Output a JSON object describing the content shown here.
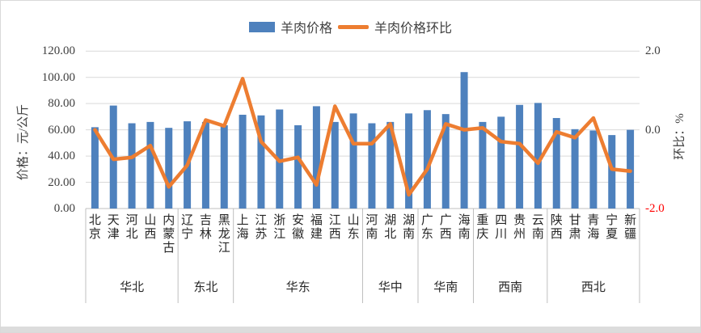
{
  "colors": {
    "bar": "#4E81BD",
    "line": "#ED7D31",
    "gridline": "#D9D9D9",
    "axis_line": "#BFBFBF",
    "tick_text": "#404040",
    "negative_tick": "#FF0000"
  },
  "chart_data": {
    "type": "bar",
    "title": "",
    "legend_position": "top",
    "grid": true,
    "categories": [
      "北京",
      "天津",
      "河北",
      "山西",
      "内蒙古",
      "辽宁",
      "吉林",
      "黑龙江",
      "上海",
      "江苏",
      "浙江",
      "安徽",
      "福建",
      "江西",
      "山东",
      "河南",
      "湖北",
      "湖南",
      "广东",
      "广西",
      "海南",
      "重庆",
      "四川",
      "贵州",
      "云南",
      "陕西",
      "甘肃",
      "青海",
      "宁夏",
      "新疆"
    ],
    "region_groups": [
      {
        "label": "华北",
        "span": 5
      },
      {
        "label": "东北",
        "span": 3
      },
      {
        "label": "华东",
        "span": 7
      },
      {
        "label": "华中",
        "span": 3
      },
      {
        "label": "华南",
        "span": 3
      },
      {
        "label": "西南",
        "span": 4
      },
      {
        "label": "西北",
        "span": 5
      }
    ],
    "series": [
      {
        "name": "羊肉价格",
        "type": "bar",
        "axis": "left",
        "color": "#4E81BD",
        "values": [
          62,
          78.5,
          65,
          66,
          61.5,
          66.5,
          66,
          63.5,
          71.5,
          71,
          75.5,
          63.5,
          78,
          66,
          72.5,
          65,
          66,
          72.5,
          75,
          72,
          104,
          66,
          70,
          79,
          80.5,
          69,
          60.5,
          59.5,
          56,
          60
        ]
      },
      {
        "name": "羊肉价格环比",
        "type": "line",
        "axis": "right",
        "color": "#ED7D31",
        "values": [
          0.0,
          -0.75,
          -0.7,
          -0.4,
          -1.45,
          -0.9,
          0.25,
          0.1,
          1.3,
          -0.3,
          -0.8,
          -0.7,
          -1.4,
          0.6,
          -0.35,
          -0.35,
          0.15,
          -1.65,
          -1.0,
          0.15,
          0.0,
          0.05,
          -0.3,
          -0.35,
          -0.85,
          -0.05,
          -0.2,
          0.3,
          -1.0,
          -1.05
        ]
      }
    ],
    "left_axis": {
      "title": "价格：元/公斤",
      "min": 0,
      "max": 120,
      "tick_values": [
        0,
        20,
        40,
        60,
        80,
        100,
        120
      ],
      "tick_labels": [
        "0.00",
        "20.00",
        "40.00",
        "60.00",
        "80.00",
        "100.00",
        "120.00"
      ]
    },
    "right_axis": {
      "title": "环比：%",
      "min": -2.0,
      "max": 2.0,
      "tick_values": [
        2.0,
        0.0,
        -2.0
      ],
      "tick_labels": [
        "2.0",
        "0.0",
        "-2.0"
      ]
    }
  }
}
